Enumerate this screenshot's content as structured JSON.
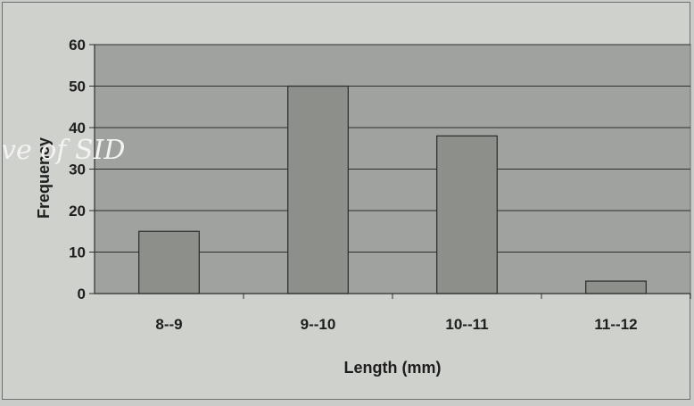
{
  "chart_data": {
    "type": "bar",
    "categories": [
      "8--9",
      "9--10",
      "10--11",
      "11--12"
    ],
    "values": [
      15,
      50,
      38,
      3
    ],
    "xlabel": "Length (mm)",
    "ylabel": "Frequency",
    "ylim": [
      0,
      60
    ],
    "yticks": [
      0,
      10,
      20,
      30,
      40,
      50,
      60
    ],
    "grid": true,
    "legend": "none"
  },
  "watermark": "ve of SID",
  "colors": {
    "plot_background": "#9fa29e",
    "bar_fill": "#8d8f8b",
    "bar_stroke": "#2b2b2b",
    "gridline": "#2e2e2e",
    "text": "#1e1e1e"
  }
}
